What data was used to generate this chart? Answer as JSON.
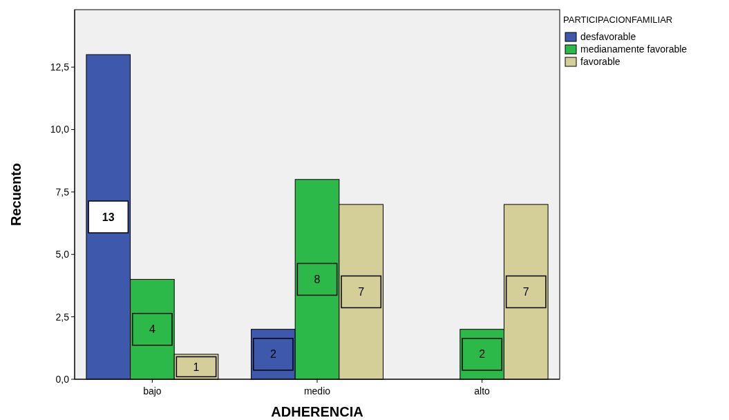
{
  "chart_data": {
    "type": "bar",
    "xlabel": "ADHERENCIA",
    "ylabel": "Recuento",
    "legend_title": "PARTICIPACIONFAMILIAR",
    "categories": [
      "bajo",
      "medio",
      "alto"
    ],
    "series": [
      {
        "name": "desfavorable",
        "color": "#3e58ac",
        "values": [
          13,
          2,
          0
        ],
        "value_labels": [
          "13",
          "2",
          null
        ]
      },
      {
        "name": "medianamente favorable",
        "color": "#2db84a",
        "values": [
          4,
          8,
          2
        ],
        "value_labels": [
          "4",
          "8",
          "2"
        ]
      },
      {
        "name": "favorable",
        "color": "#d4ce98",
        "values": [
          1,
          7,
          7
        ],
        "value_labels": [
          "1",
          "7",
          "7"
        ]
      }
    ],
    "ylim": [
      0,
      14.8
    ],
    "yticks": [
      {
        "value": 0,
        "label": "0,0"
      },
      {
        "value": 2.5,
        "label": "2,5"
      },
      {
        "value": 5,
        "label": "5,0"
      },
      {
        "value": 7.5,
        "label": "7,5"
      },
      {
        "value": 10,
        "label": "10,0"
      },
      {
        "value": 12.5,
        "label": "12,5"
      }
    ],
    "grid": false,
    "legend": "top right"
  }
}
